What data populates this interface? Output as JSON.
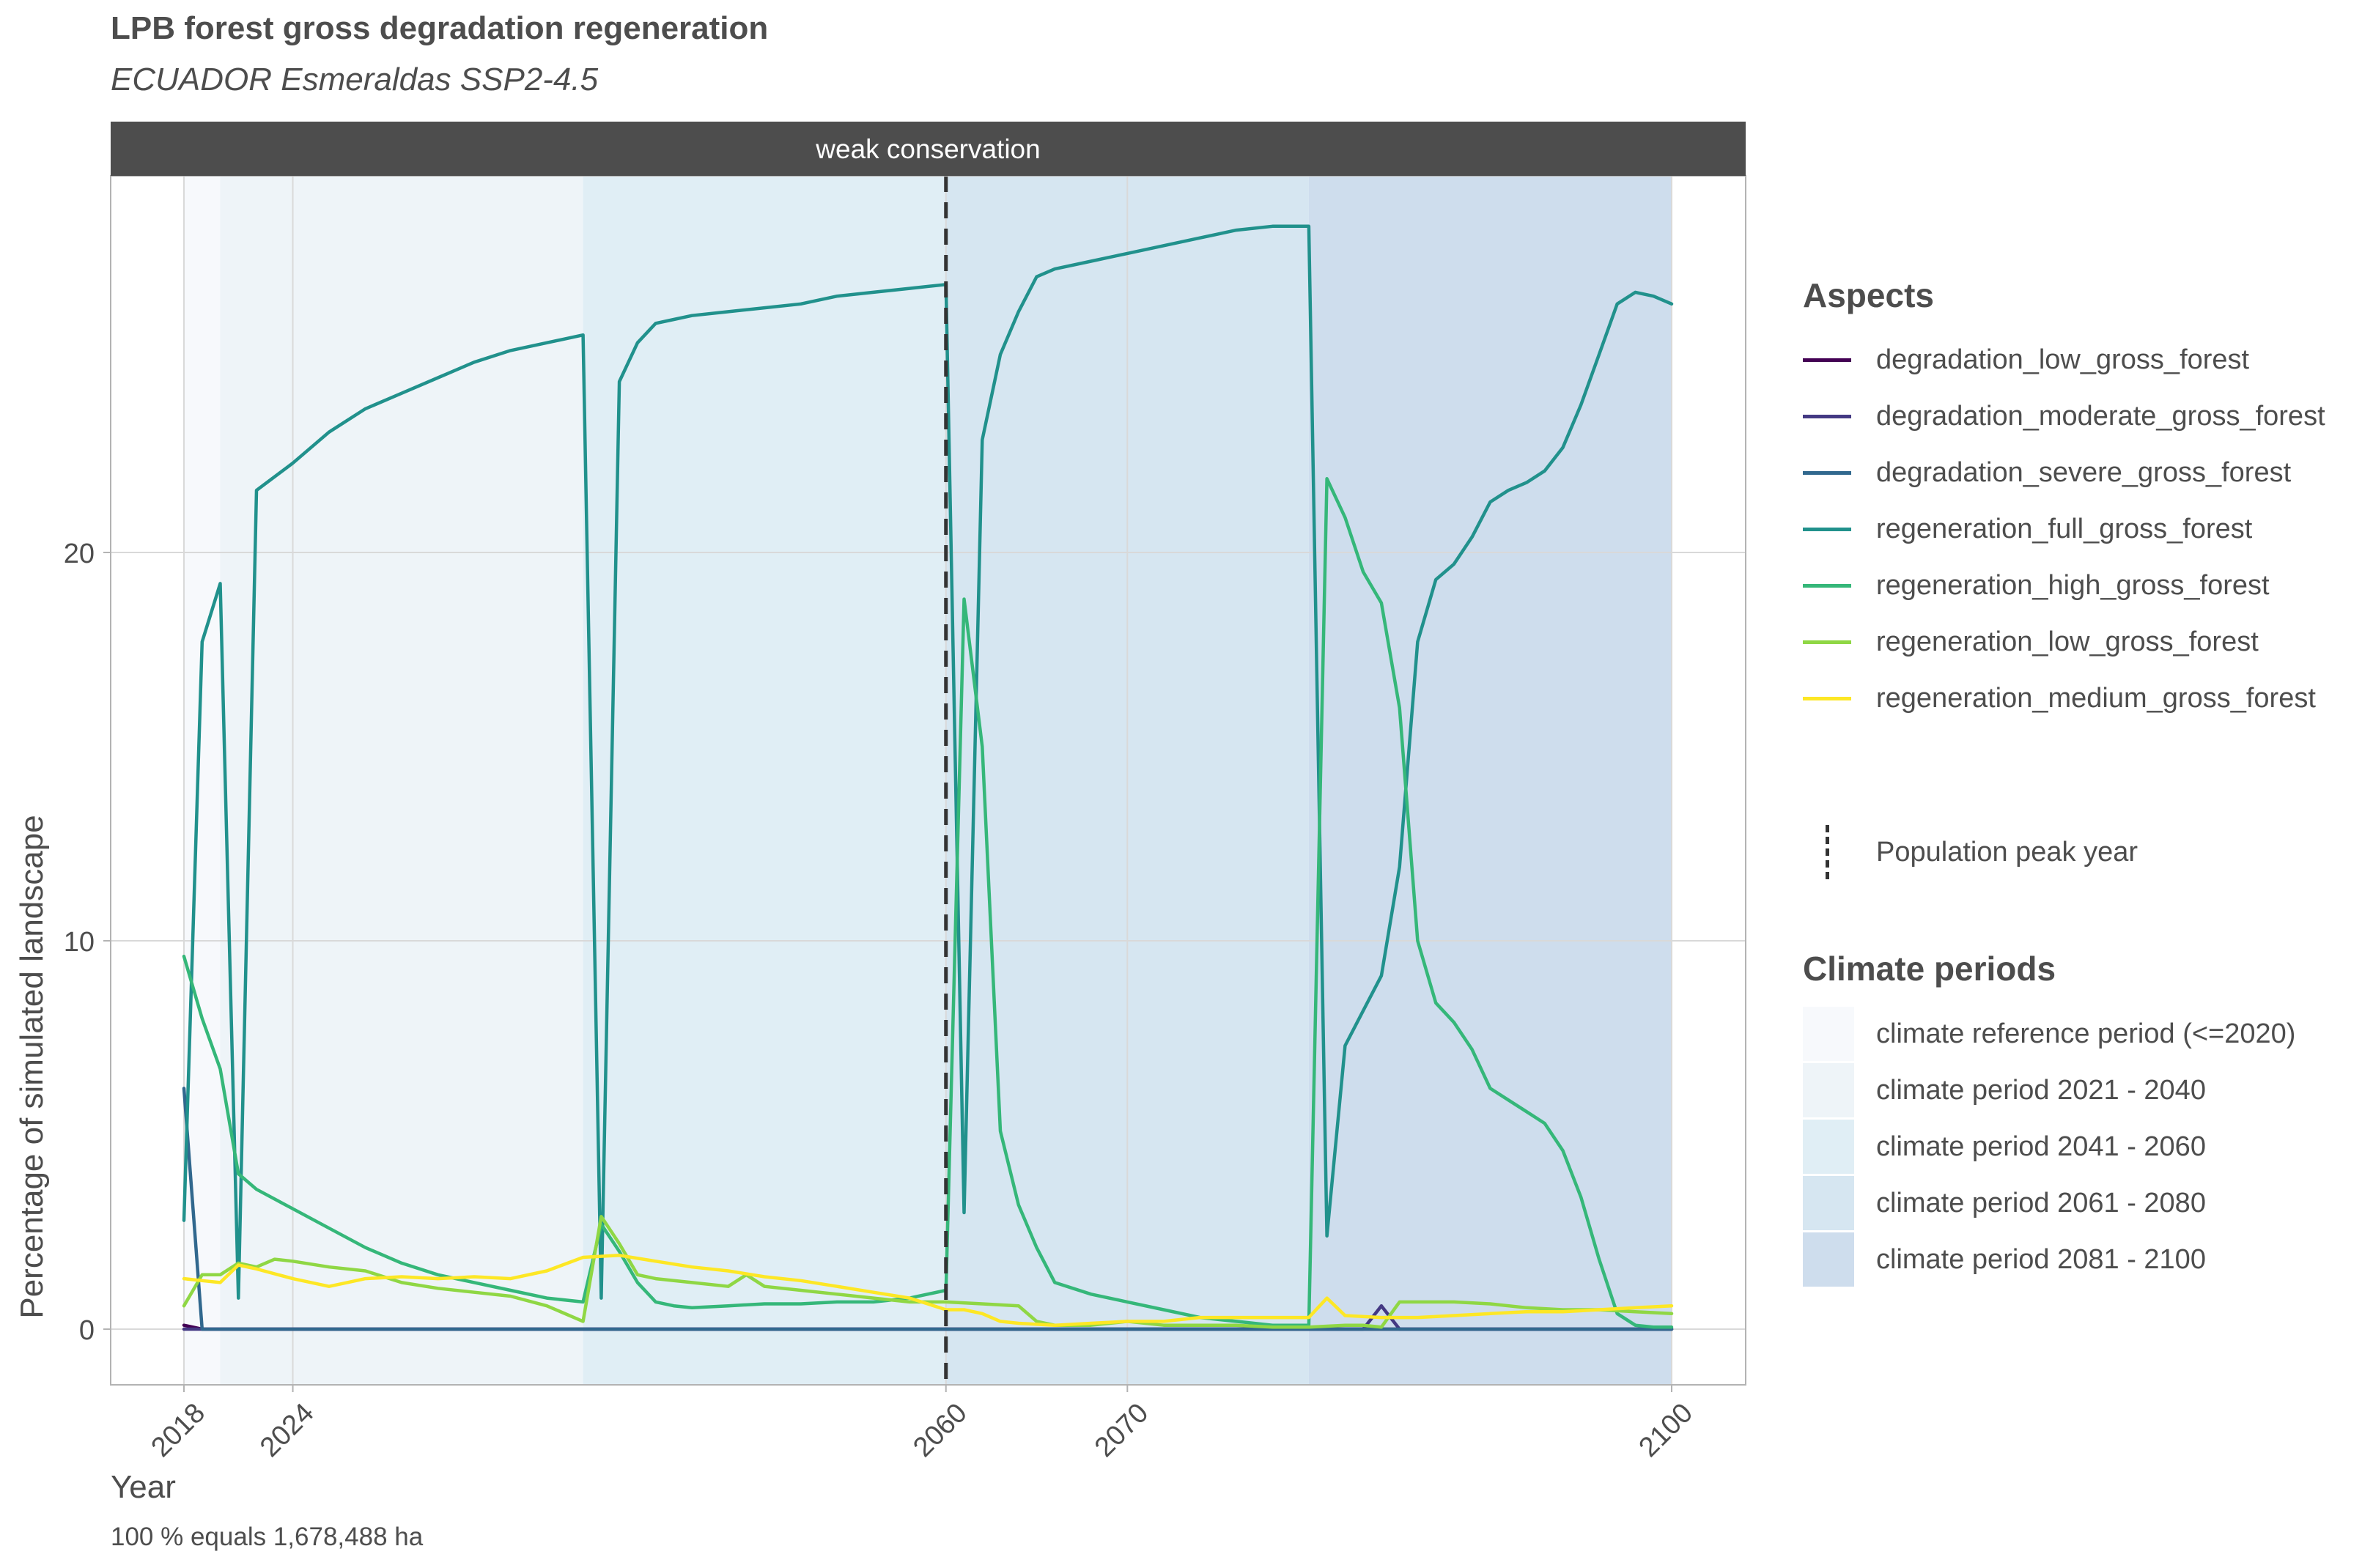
{
  "title": "LPB forest gross degradation regeneration",
  "subtitle": "ECUADOR Esmeraldas SSP2-4.5",
  "caption": "100 % equals 1,678,488 ha",
  "chart_data": {
    "type": "line",
    "facet_label": "weak conservation",
    "xlabel": "Year",
    "ylabel": "Percentage of simulated landscape",
    "xlim": [
      2018,
      2100
    ],
    "ylim": [
      0,
      29
    ],
    "x_ticks": [
      2018,
      2024,
      2060,
      2070,
      2100
    ],
    "y_ticks": [
      0,
      10,
      20
    ],
    "grid": true,
    "legend_position": "right",
    "population_peak_year": 2060,
    "climate_periods": [
      {
        "label": "climate reference period (<=2020)",
        "start": 2018,
        "end": 2020,
        "color": "#f7f9fc"
      },
      {
        "label": "climate period 2021 - 2040",
        "start": 2020,
        "end": 2040,
        "color": "#eef4f8"
      },
      {
        "label": "climate period 2041 - 2060",
        "start": 2040,
        "end": 2060,
        "color": "#e0eef5"
      },
      {
        "label": "climate period 2061 - 2080",
        "start": 2060,
        "end": 2080,
        "color": "#d6e6f1"
      },
      {
        "label": "climate period 2081 - 2100",
        "start": 2080,
        "end": 2100,
        "color": "#cedded"
      }
    ],
    "series": [
      {
        "name": "degradation_low_gross_forest",
        "color": "#440154",
        "points": [
          [
            2018,
            0.1
          ],
          [
            2019,
            0
          ],
          [
            2100,
            0
          ]
        ]
      },
      {
        "name": "degradation_moderate_gross_forest",
        "color": "#443983",
        "points": [
          [
            2018,
            0
          ],
          [
            2060,
            0
          ],
          [
            2083,
            0
          ],
          [
            2084,
            0.6
          ],
          [
            2085,
            0
          ],
          [
            2100,
            0
          ]
        ]
      },
      {
        "name": "degradation_severe_gross_forest",
        "color": "#31688e",
        "points": [
          [
            2018,
            6.2
          ],
          [
            2019,
            0
          ],
          [
            2100,
            0
          ]
        ]
      },
      {
        "name": "regeneration_full_gross_forest",
        "color": "#21918c",
        "points": [
          [
            2018,
            2.8
          ],
          [
            2019,
            17.7
          ],
          [
            2020,
            19.2
          ],
          [
            2021,
            0.8
          ],
          [
            2022,
            21.6
          ],
          [
            2024,
            22.3
          ],
          [
            2026,
            23.1
          ],
          [
            2028,
            23.7
          ],
          [
            2030,
            24.1
          ],
          [
            2032,
            24.5
          ],
          [
            2034,
            24.9
          ],
          [
            2036,
            25.2
          ],
          [
            2038,
            25.4
          ],
          [
            2040,
            25.6
          ],
          [
            2041,
            0.8
          ],
          [
            2042,
            24.4
          ],
          [
            2043,
            25.4
          ],
          [
            2044,
            25.9
          ],
          [
            2045,
            26.0
          ],
          [
            2046,
            26.1
          ],
          [
            2048,
            26.2
          ],
          [
            2050,
            26.3
          ],
          [
            2052,
            26.4
          ],
          [
            2054,
            26.6
          ],
          [
            2056,
            26.7
          ],
          [
            2058,
            26.8
          ],
          [
            2060,
            26.9
          ],
          [
            2061,
            3.0
          ],
          [
            2062,
            22.9
          ],
          [
            2063,
            25.1
          ],
          [
            2064,
            26.2
          ],
          [
            2065,
            27.1
          ],
          [
            2066,
            27.3
          ],
          [
            2068,
            27.5
          ],
          [
            2070,
            27.7
          ],
          [
            2072,
            27.9
          ],
          [
            2074,
            28.1
          ],
          [
            2076,
            28.3
          ],
          [
            2078,
            28.4
          ],
          [
            2080,
            28.4
          ],
          [
            2081,
            2.4
          ],
          [
            2082,
            7.3
          ],
          [
            2083,
            8.2
          ],
          [
            2084,
            9.1
          ],
          [
            2085,
            11.9
          ],
          [
            2086,
            17.7
          ],
          [
            2087,
            19.3
          ],
          [
            2088,
            19.7
          ],
          [
            2089,
            20.4
          ],
          [
            2090,
            21.3
          ],
          [
            2091,
            21.6
          ],
          [
            2092,
            21.8
          ],
          [
            2093,
            22.1
          ],
          [
            2094,
            22.7
          ],
          [
            2095,
            23.8
          ],
          [
            2096,
            25.1
          ],
          [
            2097,
            26.4
          ],
          [
            2098,
            26.7
          ],
          [
            2099,
            26.6
          ],
          [
            2100,
            26.4
          ]
        ]
      },
      {
        "name": "regeneration_high_gross_forest",
        "color": "#35b779",
        "points": [
          [
            2018,
            9.6
          ],
          [
            2019,
            8.0
          ],
          [
            2020,
            6.7
          ],
          [
            2021,
            4.0
          ],
          [
            2022,
            3.6
          ],
          [
            2024,
            3.1
          ],
          [
            2026,
            2.6
          ],
          [
            2028,
            2.1
          ],
          [
            2030,
            1.7
          ],
          [
            2032,
            1.4
          ],
          [
            2034,
            1.2
          ],
          [
            2036,
            1.0
          ],
          [
            2038,
            0.8
          ],
          [
            2040,
            0.7
          ],
          [
            2041,
            2.7
          ],
          [
            2042,
            2.0
          ],
          [
            2043,
            1.2
          ],
          [
            2044,
            0.7
          ],
          [
            2045,
            0.6
          ],
          [
            2046,
            0.55
          ],
          [
            2048,
            0.6
          ],
          [
            2050,
            0.65
          ],
          [
            2052,
            0.65
          ],
          [
            2054,
            0.7
          ],
          [
            2056,
            0.7
          ],
          [
            2058,
            0.8
          ],
          [
            2060,
            1.0
          ],
          [
            2061,
            18.8
          ],
          [
            2062,
            15.0
          ],
          [
            2063,
            5.1
          ],
          [
            2064,
            3.2
          ],
          [
            2065,
            2.1
          ],
          [
            2066,
            1.2
          ],
          [
            2068,
            0.9
          ],
          [
            2070,
            0.7
          ],
          [
            2072,
            0.5
          ],
          [
            2074,
            0.3
          ],
          [
            2076,
            0.2
          ],
          [
            2078,
            0.1
          ],
          [
            2080,
            0.1
          ],
          [
            2081,
            21.9
          ],
          [
            2082,
            20.9
          ],
          [
            2083,
            19.5
          ],
          [
            2084,
            18.7
          ],
          [
            2085,
            16.0
          ],
          [
            2086,
            10.0
          ],
          [
            2087,
            8.4
          ],
          [
            2088,
            7.9
          ],
          [
            2089,
            7.2
          ],
          [
            2090,
            6.2
          ],
          [
            2091,
            5.9
          ],
          [
            2092,
            5.6
          ],
          [
            2093,
            5.3
          ],
          [
            2094,
            4.6
          ],
          [
            2095,
            3.4
          ],
          [
            2096,
            1.8
          ],
          [
            2097,
            0.4
          ],
          [
            2098,
            0.1
          ],
          [
            2099,
            0.05
          ],
          [
            2100,
            0.05
          ]
        ]
      },
      {
        "name": "regeneration_low_gross_forest",
        "color": "#8fd744",
        "points": [
          [
            2018,
            0.6
          ],
          [
            2019,
            1.4
          ],
          [
            2020,
            1.4
          ],
          [
            2021,
            1.7
          ],
          [
            2022,
            1.6
          ],
          [
            2023,
            1.8
          ],
          [
            2024,
            1.75
          ],
          [
            2026,
            1.6
          ],
          [
            2028,
            1.5
          ],
          [
            2030,
            1.2
          ],
          [
            2032,
            1.05
          ],
          [
            2034,
            0.95
          ],
          [
            2036,
            0.85
          ],
          [
            2038,
            0.6
          ],
          [
            2040,
            0.2
          ],
          [
            2041,
            2.9
          ],
          [
            2042,
            2.2
          ],
          [
            2043,
            1.4
          ],
          [
            2044,
            1.3
          ],
          [
            2046,
            1.2
          ],
          [
            2048,
            1.1
          ],
          [
            2049,
            1.4
          ],
          [
            2050,
            1.1
          ],
          [
            2052,
            1.0
          ],
          [
            2054,
            0.9
          ],
          [
            2056,
            0.8
          ],
          [
            2058,
            0.7
          ],
          [
            2060,
            0.7
          ],
          [
            2062,
            0.65
          ],
          [
            2064,
            0.6
          ],
          [
            2065,
            0.2
          ],
          [
            2066,
            0.1
          ],
          [
            2068,
            0.1
          ],
          [
            2070,
            0.2
          ],
          [
            2072,
            0.1
          ],
          [
            2074,
            0.1
          ],
          [
            2076,
            0.1
          ],
          [
            2078,
            0.05
          ],
          [
            2080,
            0.05
          ],
          [
            2082,
            0.1
          ],
          [
            2083,
            0.1
          ],
          [
            2084,
            0.05
          ],
          [
            2085,
            0.7
          ],
          [
            2086,
            0.7
          ],
          [
            2088,
            0.7
          ],
          [
            2090,
            0.65
          ],
          [
            2092,
            0.55
          ],
          [
            2094,
            0.5
          ],
          [
            2096,
            0.5
          ],
          [
            2098,
            0.45
          ],
          [
            2100,
            0.4
          ]
        ]
      },
      {
        "name": "regeneration_medium_gross_forest",
        "color": "#fde725",
        "points": [
          [
            2018,
            1.3
          ],
          [
            2019,
            1.25
          ],
          [
            2020,
            1.2
          ],
          [
            2021,
            1.65
          ],
          [
            2022,
            1.55
          ],
          [
            2024,
            1.3
          ],
          [
            2026,
            1.1
          ],
          [
            2027,
            1.2
          ],
          [
            2028,
            1.3
          ],
          [
            2030,
            1.35
          ],
          [
            2032,
            1.3
          ],
          [
            2034,
            1.35
          ],
          [
            2036,
            1.3
          ],
          [
            2038,
            1.5
          ],
          [
            2040,
            1.85
          ],
          [
            2042,
            1.9
          ],
          [
            2044,
            1.75
          ],
          [
            2046,
            1.6
          ],
          [
            2048,
            1.5
          ],
          [
            2050,
            1.35
          ],
          [
            2052,
            1.25
          ],
          [
            2054,
            1.1
          ],
          [
            2056,
            0.95
          ],
          [
            2058,
            0.8
          ],
          [
            2060,
            0.5
          ],
          [
            2061,
            0.5
          ],
          [
            2062,
            0.4
          ],
          [
            2063,
            0.2
          ],
          [
            2064,
            0.15
          ],
          [
            2066,
            0.1
          ],
          [
            2068,
            0.15
          ],
          [
            2070,
            0.2
          ],
          [
            2072,
            0.2
          ],
          [
            2074,
            0.3
          ],
          [
            2076,
            0.3
          ],
          [
            2078,
            0.3
          ],
          [
            2080,
            0.3
          ],
          [
            2081,
            0.8
          ],
          [
            2082,
            0.35
          ],
          [
            2084,
            0.3
          ],
          [
            2086,
            0.3
          ],
          [
            2088,
            0.35
          ],
          [
            2090,
            0.4
          ],
          [
            2092,
            0.45
          ],
          [
            2094,
            0.45
          ],
          [
            2096,
            0.5
          ],
          [
            2098,
            0.55
          ],
          [
            2100,
            0.6
          ]
        ]
      }
    ]
  },
  "legend": {
    "aspects_title": "Aspects",
    "population_peak_label": "Population peak year",
    "climate_title": "Climate periods"
  }
}
